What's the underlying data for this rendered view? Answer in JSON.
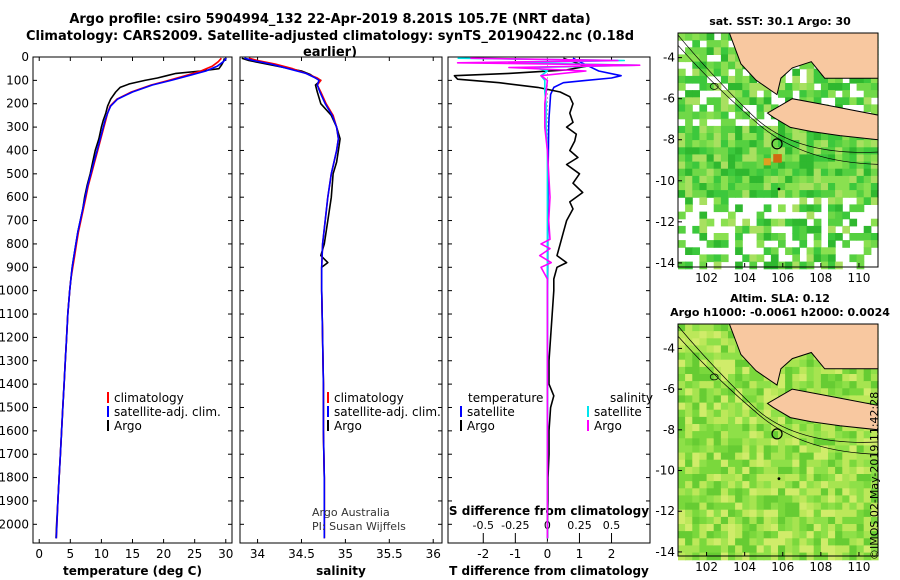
{
  "header": {
    "title_line1": "Argo profile: csiro 5904994_132 22-Apr-2019 8.201S 105.7E (NRT data)",
    "title_line2": "Climatology: CARS2009. Satellite-adjusted climatology: synTS_20190422.nc (0.18d earlier)"
  },
  "colors": {
    "climatology": "#ff0000",
    "satellite": "#0000ff",
    "argo": "#000000",
    "sat_salinity": "#00e5ee",
    "argo_salinity": "#ff00ff"
  },
  "chart_data": [
    {
      "type": "line",
      "id": "temperature",
      "xlabel": "temperature (deg C)",
      "xlim": [
        -1,
        31
      ],
      "ylim": [
        2080,
        0
      ],
      "xticks": [
        0,
        5,
        10,
        15,
        20,
        25,
        30
      ],
      "yticks": [
        0,
        100,
        200,
        300,
        400,
        500,
        600,
        700,
        800,
        900,
        1000,
        1100,
        1200,
        1300,
        1400,
        1500,
        1600,
        1700,
        1800,
        1900,
        2000
      ],
      "legend": [
        "climatology",
        "satellite-adj. clim.",
        "Argo"
      ],
      "series": [
        {
          "name": "Argo",
          "depth": [
            5,
            20,
            35,
            50,
            60,
            70,
            80,
            90,
            100,
            115,
            130,
            150,
            180,
            210,
            240,
            270,
            300,
            350,
            400,
            450,
            500,
            550,
            600,
            650,
            700,
            750,
            800,
            850,
            900,
            950,
            1000,
            1100,
            1200,
            1300,
            1400,
            1500,
            1600,
            1700,
            1800,
            1900,
            2000,
            2060
          ],
          "values": [
            29.8,
            29.6,
            29.3,
            28.9,
            26,
            22,
            20.5,
            19,
            17,
            14.5,
            13,
            12.3,
            11.5,
            11,
            10.7,
            10.3,
            10,
            9.6,
            9,
            8.6,
            8.2,
            7.7,
            7.3,
            7,
            6.6,
            6.2,
            5.9,
            5.6,
            5.3,
            5.1,
            4.9,
            4.6,
            4.4,
            4.2,
            4,
            3.8,
            3.6,
            3.4,
            3.2,
            3,
            2.8,
            2.7
          ]
        },
        {
          "name": "climatology",
          "depth": [
            5,
            20,
            40,
            60,
            80,
            100,
            120,
            150,
            180,
            210,
            240,
            270,
            300,
            350,
            400,
            450,
            500,
            550,
            600,
            650,
            700,
            750,
            800,
            850,
            900,
            950,
            1000,
            1100,
            1200,
            1300,
            1400,
            1500,
            1600,
            1700,
            1800,
            1900,
            2000,
            2060
          ],
          "values": [
            29.3,
            28.8,
            27.8,
            26,
            23.5,
            20.8,
            18,
            14.8,
            12.5,
            11.4,
            11,
            10.7,
            10.4,
            9.9,
            9.4,
            8.9,
            8.4,
            7.9,
            7.5,
            7.1,
            6.7,
            6.3,
            6,
            5.7,
            5.4,
            5.1,
            4.9,
            4.6,
            4.4,
            4.2,
            4,
            3.8,
            3.6,
            3.4,
            3.2,
            3,
            2.85,
            2.75
          ]
        },
        {
          "name": "satellite-adj. clim.",
          "depth": [
            5,
            20,
            40,
            60,
            80,
            100,
            120,
            150,
            180,
            210,
            240,
            270,
            300,
            350,
            400,
            450,
            500,
            550,
            600,
            650,
            700,
            750,
            800,
            850,
            900,
            950,
            1000,
            1100,
            1200,
            1300,
            1400,
            1500,
            1600,
            1700,
            1800,
            1900,
            2000,
            2060
          ],
          "values": [
            30.1,
            29.6,
            28.6,
            26.8,
            24,
            21.2,
            18.2,
            15,
            12.6,
            11.5,
            11,
            10.6,
            10.3,
            9.8,
            9.3,
            8.8,
            8.3,
            7.8,
            7.4,
            7,
            6.6,
            6.2,
            5.9,
            5.6,
            5.3,
            5.1,
            4.9,
            4.6,
            4.4,
            4.2,
            4,
            3.8,
            3.6,
            3.4,
            3.2,
            3,
            2.85,
            2.75
          ]
        }
      ]
    },
    {
      "type": "line",
      "id": "salinity",
      "xlabel": "salinity",
      "xlim": [
        33.8,
        36.1
      ],
      "ylim": [
        2080,
        0
      ],
      "xticks": [
        34,
        34.5,
        35,
        35.5,
        36
      ],
      "legend": [
        "climatology",
        "satellite-adj. clim.",
        "Argo"
      ],
      "annotation": [
        "Argo Australia",
        "PI: Susan Wijffels"
      ],
      "series": [
        {
          "name": "Argo",
          "depth": [
            5,
            15,
            30,
            45,
            60,
            75,
            90,
            100,
            120,
            150,
            200,
            250,
            300,
            350,
            400,
            450,
            500,
            600,
            700,
            800,
            850,
            880,
            900,
            1000,
            1200,
            1400,
            1600,
            1800,
            2000,
            2060
          ],
          "values": [
            33.82,
            33.9,
            34.1,
            34.3,
            34.5,
            34.6,
            34.66,
            34.72,
            34.66,
            34.68,
            34.72,
            34.84,
            34.9,
            34.94,
            34.92,
            34.9,
            34.86,
            34.84,
            34.8,
            34.76,
            34.72,
            34.8,
            34.73,
            34.73,
            34.74,
            34.75,
            34.75,
            34.76,
            34.76,
            34.76
          ]
        },
        {
          "name": "climatology",
          "depth": [
            5,
            15,
            30,
            50,
            70,
            90,
            100,
            120,
            150,
            200,
            250,
            300,
            350,
            400,
            450,
            500,
            600,
            700,
            800,
            900,
            1000,
            1200,
            1400,
            1600,
            1800,
            2000,
            2060
          ],
          "values": [
            33.9,
            34.0,
            34.2,
            34.4,
            34.55,
            34.68,
            34.72,
            34.68,
            34.72,
            34.78,
            34.86,
            34.9,
            34.92,
            34.9,
            34.87,
            34.84,
            34.8,
            34.77,
            34.74,
            34.73,
            34.73,
            34.74,
            34.75,
            34.75,
            34.76,
            34.76,
            34.76
          ]
        },
        {
          "name": "satellite-adj. clim.",
          "depth": [
            5,
            15,
            30,
            50,
            70,
            90,
            100,
            120,
            150,
            200,
            250,
            300,
            350,
            400,
            450,
            500,
            600,
            700,
            800,
            900,
            1000,
            1200,
            1400,
            1600,
            1800,
            2000,
            2060
          ],
          "values": [
            33.85,
            33.95,
            34.15,
            34.35,
            34.55,
            34.66,
            34.7,
            34.68,
            34.71,
            34.77,
            34.85,
            34.9,
            34.92,
            34.9,
            34.87,
            34.84,
            34.8,
            34.77,
            34.74,
            34.73,
            34.73,
            34.74,
            34.75,
            34.75,
            34.76,
            34.76,
            34.76
          ]
        }
      ]
    },
    {
      "type": "line",
      "id": "differences",
      "xlabel_temperature": "T difference from climatology",
      "xlabel_salinity": "S difference from climatology",
      "t_xlim": [
        -3.1,
        3.2
      ],
      "s_xlim": [
        -0.775,
        0.8
      ],
      "ylim": [
        2080,
        0
      ],
      "t_xticks": [
        -2,
        -1,
        0,
        1,
        2
      ],
      "s_xticks": [
        -0.5,
        -0.25,
        0,
        0.25,
        0.5
      ],
      "s_tick_labels": [
        "-0.5",
        "-0.25",
        "0",
        "0.25",
        "0.5"
      ],
      "legend_temperature_title": "temperature",
      "legend_salinity_title": "salinity",
      "legend_temperature": [
        "satellite",
        "Argo"
      ],
      "legend_salinity": [
        "satellite",
        "Argo"
      ],
      "series": [
        {
          "name": "T satellite",
          "depth": [
            5,
            20,
            40,
            60,
            80,
            90,
            100,
            110,
            130,
            160,
            200,
            260,
            300,
            400,
            500,
            600,
            700,
            800,
            900,
            1000,
            1200,
            1400,
            1600,
            1800,
            2000,
            2060
          ],
          "values": [
            0.8,
            1.0,
            1.3,
            1.6,
            2.3,
            2.0,
            1.2,
            0.5,
            0.2,
            0.1,
            0.08,
            0.05,
            0.04,
            0.03,
            0.02,
            0.02,
            0.01,
            0.01,
            0.01,
            0.0,
            0.0,
            0.0,
            0.0,
            0.0,
            0.0,
            0.0
          ]
        },
        {
          "name": "T Argo",
          "depth": [
            5,
            20,
            40,
            55,
            70,
            80,
            95,
            110,
            130,
            150,
            170,
            200,
            240,
            280,
            300,
            330,
            360,
            400,
            430,
            460,
            500,
            540,
            580,
            620,
            650,
            700,
            750,
            800,
            850,
            880,
            900,
            950,
            1000,
            1100,
            1200,
            1300,
            1400,
            1450,
            1500,
            1600,
            1700,
            1800,
            1900,
            2000,
            2060
          ],
          "values": [
            0.5,
            0.8,
            1.2,
            0.6,
            -1.2,
            -2.9,
            -2.8,
            -1.5,
            -0.3,
            0.4,
            0.7,
            0.8,
            0.7,
            0.8,
            0.6,
            0.9,
            0.85,
            0.7,
            0.95,
            0.6,
            1.0,
            0.8,
            1.1,
            0.7,
            0.8,
            0.6,
            0.5,
            0.4,
            0.3,
            0.6,
            0.3,
            0.2,
            0.2,
            0.15,
            0.1,
            0.05,
            0.05,
            0.2,
            0.1,
            0.05,
            0.05,
            0.02,
            0.02,
            0.0,
            0.0
          ]
        },
        {
          "name": "S satellite",
          "depth": [
            5,
            15,
            25,
            35,
            45,
            60,
            80,
            100,
            150,
            200,
            300,
            400,
            500,
            600,
            700,
            800,
            900,
            1000,
            1200,
            1400,
            1600,
            1800,
            2000,
            2060
          ],
          "values": [
            -0.7,
            0.6,
            -0.3,
            0.7,
            -0.1,
            0.0,
            -0.05,
            -0.02,
            -0.02,
            -0.01,
            -0.01,
            0.0,
            0.0,
            0.0,
            0.0,
            0.0,
            0.0,
            0.0,
            0.0,
            0.0,
            0.0,
            0.0,
            0.0,
            0.0
          ]
        },
        {
          "name": "S Argo",
          "depth": [
            5,
            15,
            25,
            35,
            45,
            60,
            80,
            100,
            150,
            200,
            300,
            400,
            500,
            600,
            700,
            780,
            800,
            820,
            850,
            880,
            900,
            950,
            1000,
            1200,
            1400,
            1600,
            1800,
            2000,
            2060
          ],
          "values": [
            -0.6,
            0.55,
            -0.7,
            0.72,
            -0.3,
            0.3,
            -0.05,
            0.0,
            -0.01,
            -0.02,
            -0.02,
            0.0,
            0.01,
            0.02,
            0.01,
            0.02,
            -0.05,
            0.02,
            -0.06,
            0.03,
            -0.05,
            0.0,
            0.0,
            0.0,
            0.0,
            0.0,
            0.0,
            0.0,
            0.0
          ]
        }
      ]
    },
    {
      "type": "heatmap",
      "id": "sst_map",
      "title": "sat. SST: 30.1 Argo: 30",
      "xlim": [
        100.5,
        111
      ],
      "ylim": [
        -14.2,
        -2.8
      ],
      "xticks": [
        102,
        104,
        106,
        108,
        110
      ],
      "yticks": [
        -4,
        -6,
        -8,
        -10,
        -12,
        -14
      ],
      "argo_position": {
        "lon": 105.7,
        "lat": -8.2
      }
    },
    {
      "type": "heatmap",
      "id": "sla_map",
      "title": "Altim. SLA: 0.12",
      "subtitle": "Argo h1000: -0.0061 h2000: 0.0024",
      "xlim": [
        100.5,
        111
      ],
      "ylim": [
        -14.2,
        -2.8
      ],
      "xticks": [
        102,
        104,
        106,
        108,
        110
      ],
      "yticks": [
        -4,
        -6,
        -8,
        -10,
        -12,
        -14
      ],
      "argo_position": {
        "lon": 105.7,
        "lat": -8.2
      }
    }
  ],
  "footer": {
    "stamp": "©IMOS 02-May-2019 11:42:28"
  }
}
